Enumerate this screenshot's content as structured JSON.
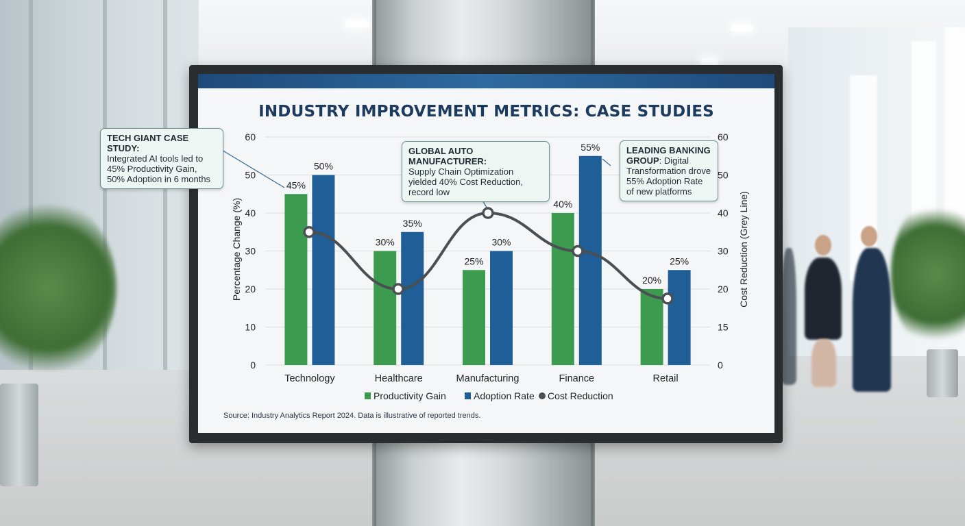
{
  "chart_data": {
    "type": "bar",
    "title": "INDUSTRY IMPROVEMENT METRICS: CASE STUDIES",
    "categories": [
      "Technology",
      "Healthcare",
      "Manufacturing",
      "Finance",
      "Retail"
    ],
    "series": [
      {
        "name": "Productivity Gain",
        "kind": "bar",
        "color": "#3d9b4f",
        "values": [
          45,
          30,
          25,
          40,
          20
        ],
        "labels": [
          "45%",
          "30%",
          "25%",
          "40%",
          "20%"
        ]
      },
      {
        "name": "Adoption Rate",
        "kind": "bar",
        "color": "#1f5e96",
        "values": [
          50,
          35,
          30,
          55,
          25
        ],
        "labels": [
          "50%",
          "35%",
          "30%",
          "55%",
          "25%"
        ]
      },
      {
        "name": "Cost Reduction",
        "kind": "line",
        "axis": "right",
        "color": "#4a4f54",
        "values": [
          35,
          20,
          40,
          30,
          17.5
        ]
      }
    ],
    "ylabel": "Percentage Change (%)",
    "y2label": "Cost Reduction (Grey Line)",
    "ylim": [
      0,
      60
    ],
    "yticks": [
      "0",
      "10",
      "20",
      "30",
      "40",
      "50",
      "60"
    ],
    "y2ticks": [
      "0",
      "15",
      "20",
      "30",
      "40",
      "50",
      "60"
    ],
    "legend": [
      "Productivity Gain",
      "Adoption Rate",
      "Cost Reduction"
    ],
    "legend_position": "bottom-center"
  },
  "callouts": {
    "tech": {
      "heading": "TECH GIANT CASE STUDY:",
      "body": "Integrated AI tools led to 45% Productivity Gain, 50% Adoption in 6 months"
    },
    "auto": {
      "heading": "GLOBAL AUTO MANUFACTURER:",
      "body": "Supply Chain Optimization yielded 40% Cost Reduction, record low"
    },
    "bank": {
      "heading": "LEADING BANKING GROUP",
      "body": ": Digital Transformation drove 55% Adoption Rate of new platforms"
    }
  },
  "source": "Source: Industry Analytics Report 2024. Data is illustrative of reported trends."
}
